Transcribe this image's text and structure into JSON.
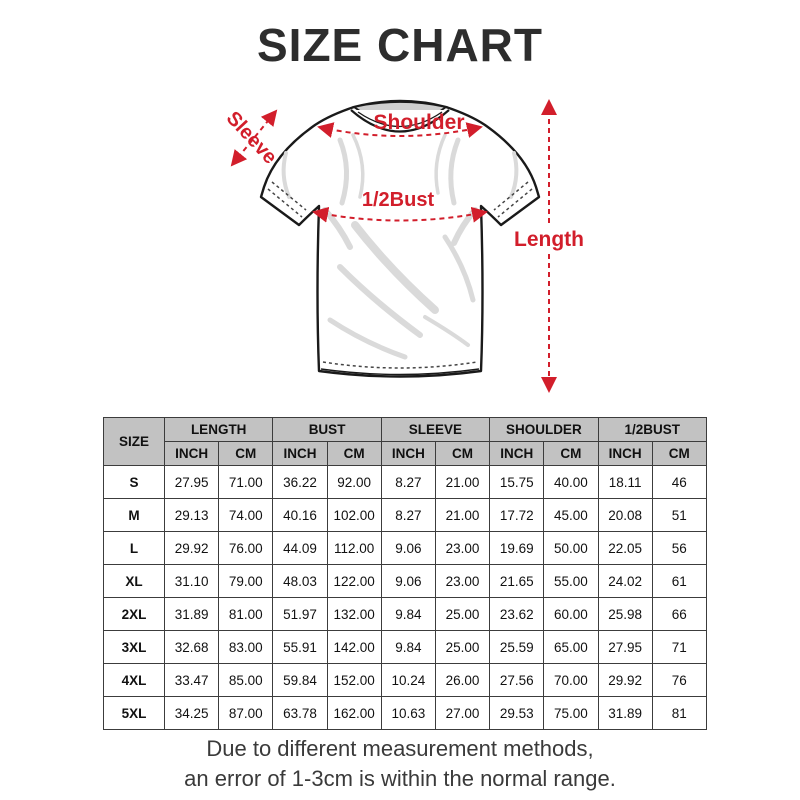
{
  "title": "SIZE CHART",
  "colors": {
    "accent_red": "#d21e2b",
    "table_header_bg": "#c2c2c2",
    "table_border": "#3c3c3c"
  },
  "diagram": {
    "labels": {
      "sleeve": "Sleeve",
      "shoulder": "Shoulder",
      "half_bust": "1/2Bust",
      "length": "Length"
    }
  },
  "size_table": {
    "size_header": "SIZE",
    "groups": [
      {
        "label": "LENGTH",
        "units": [
          "INCH",
          "CM"
        ]
      },
      {
        "label": "BUST",
        "units": [
          "INCH",
          "CM"
        ]
      },
      {
        "label": "SLEEVE",
        "units": [
          "INCH",
          "CM"
        ]
      },
      {
        "label": "SHOULDER",
        "units": [
          "INCH",
          "CM"
        ]
      },
      {
        "label": "1/2BUST",
        "units": [
          "INCH",
          "CM"
        ]
      }
    ],
    "rows": [
      {
        "size": "S",
        "values": [
          "27.95",
          "71.00",
          "36.22",
          "92.00",
          "8.27",
          "21.00",
          "15.75",
          "40.00",
          "18.11",
          "46"
        ]
      },
      {
        "size": "M",
        "values": [
          "29.13",
          "74.00",
          "40.16",
          "102.00",
          "8.27",
          "21.00",
          "17.72",
          "45.00",
          "20.08",
          "51"
        ]
      },
      {
        "size": "L",
        "values": [
          "29.92",
          "76.00",
          "44.09",
          "112.00",
          "9.06",
          "23.00",
          "19.69",
          "50.00",
          "22.05",
          "56"
        ]
      },
      {
        "size": "XL",
        "values": [
          "31.10",
          "79.00",
          "48.03",
          "122.00",
          "9.06",
          "23.00",
          "21.65",
          "55.00",
          "24.02",
          "61"
        ]
      },
      {
        "size": "2XL",
        "values": [
          "31.89",
          "81.00",
          "51.97",
          "132.00",
          "9.84",
          "25.00",
          "23.62",
          "60.00",
          "25.98",
          "66"
        ]
      },
      {
        "size": "3XL",
        "values": [
          "32.68",
          "83.00",
          "55.91",
          "142.00",
          "9.84",
          "25.00",
          "25.59",
          "65.00",
          "27.95",
          "71"
        ]
      },
      {
        "size": "4XL",
        "values": [
          "33.47",
          "85.00",
          "59.84",
          "152.00",
          "10.24",
          "26.00",
          "27.56",
          "70.00",
          "29.92",
          "76"
        ]
      },
      {
        "size": "5XL",
        "values": [
          "34.25",
          "87.00",
          "63.78",
          "162.00",
          "10.63",
          "27.00",
          "29.53",
          "75.00",
          "31.89",
          "81"
        ]
      }
    ]
  },
  "footer": {
    "line1": "Due to different measurement methods,",
    "line2": "an error of 1-3cm is within the normal range."
  }
}
